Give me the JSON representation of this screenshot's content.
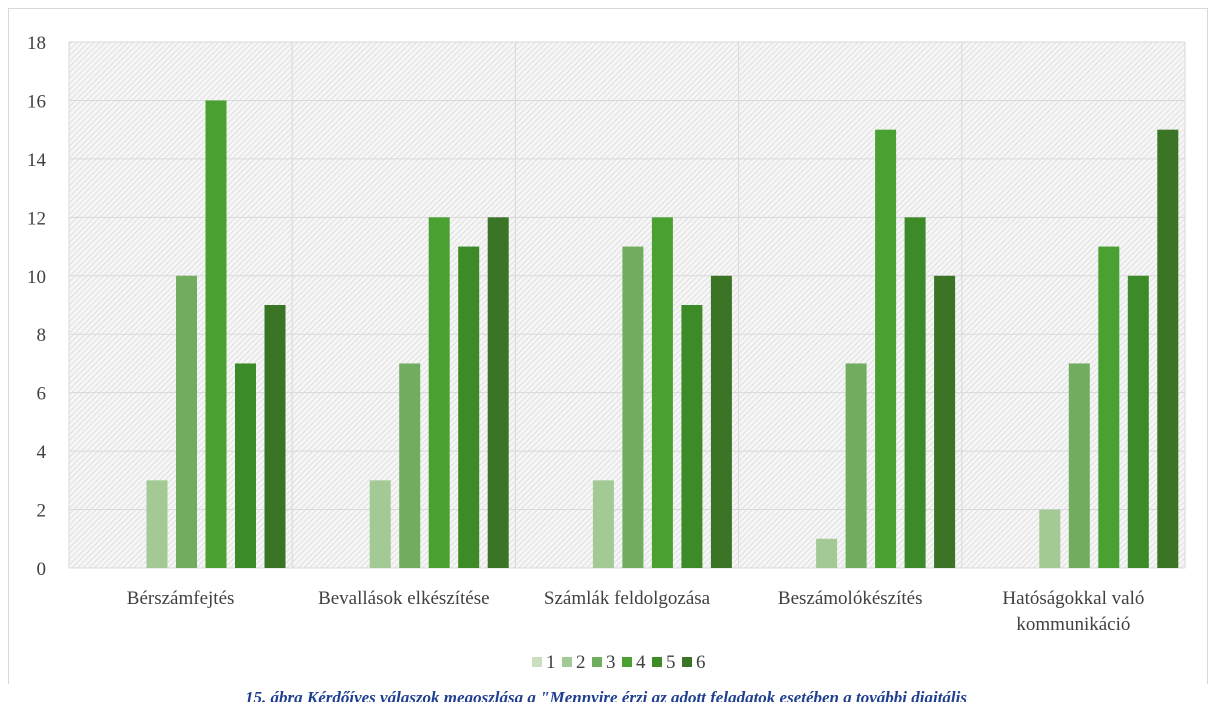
{
  "chart_data": {
    "type": "bar",
    "categories": [
      "Bérszámfejtés",
      "Bevallások elkészítése",
      "Számlák feldolgozása",
      "Beszámolókészítés",
      "Hatóságokkal való kommunikáció"
    ],
    "category_lines": [
      [
        "Bérszámfejtés"
      ],
      [
        "Bevallások elkészítése"
      ],
      [
        "Számlák feldolgozása"
      ],
      [
        "Beszámolókészítés"
      ],
      [
        "Hatóságokkal való",
        "kommunikáció"
      ]
    ],
    "series": [
      {
        "name": "1",
        "values": [
          0,
          0,
          0,
          0,
          0
        ],
        "color": "#c9dfbf"
      },
      {
        "name": "2",
        "values": [
          3,
          3,
          3,
          1,
          2
        ],
        "color": "#a3c995"
      },
      {
        "name": "3",
        "values": [
          10,
          7,
          11,
          7,
          7
        ],
        "color": "#70ad5f"
      },
      {
        "name": "4",
        "values": [
          16,
          12,
          12,
          15,
          11
        ],
        "color": "#4ba032"
      },
      {
        "name": "5",
        "values": [
          7,
          11,
          9,
          12,
          10
        ],
        "color": "#3c8a28"
      },
      {
        "name": "6",
        "values": [
          9,
          12,
          10,
          10,
          15
        ],
        "color": "#3a7424"
      }
    ],
    "ylim": [
      0,
      18
    ],
    "yticks": [
      0,
      2,
      4,
      6,
      8,
      10,
      12,
      14,
      16,
      18
    ],
    "grid": true,
    "legend": "bottom"
  },
  "caption": "15. ábra Kérdőíves válaszok megoszlása a \"Mennyire érzi az adott feladatok esetében a további digitális"
}
